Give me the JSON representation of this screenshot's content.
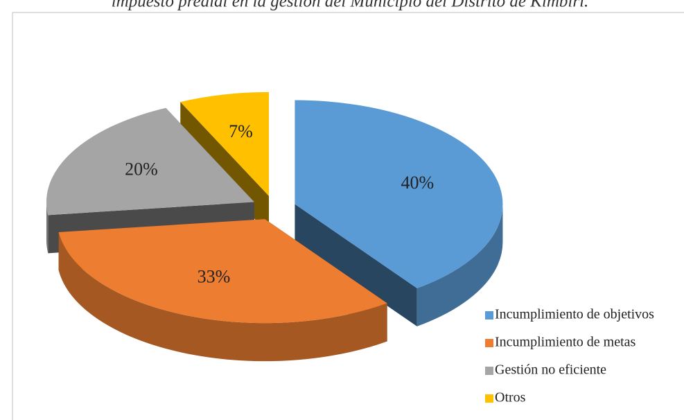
{
  "chart_data": {
    "type": "pie",
    "title": "impuesto predial en la gestión del Municipio del Distrito de Kimbiri.",
    "categories": [
      "Incumplimiento de objetivos",
      "Incumplimiento de metas",
      "Gestión no eficiente",
      "Otros"
    ],
    "values": [
      40,
      33,
      20,
      7
    ],
    "value_labels": [
      "40%",
      "33%",
      "20%",
      "7%"
    ],
    "colors": [
      "#5b9bd5",
      "#ed7d31",
      "#a5a5a5",
      "#ffc000"
    ],
    "legend": "bottom-right"
  }
}
